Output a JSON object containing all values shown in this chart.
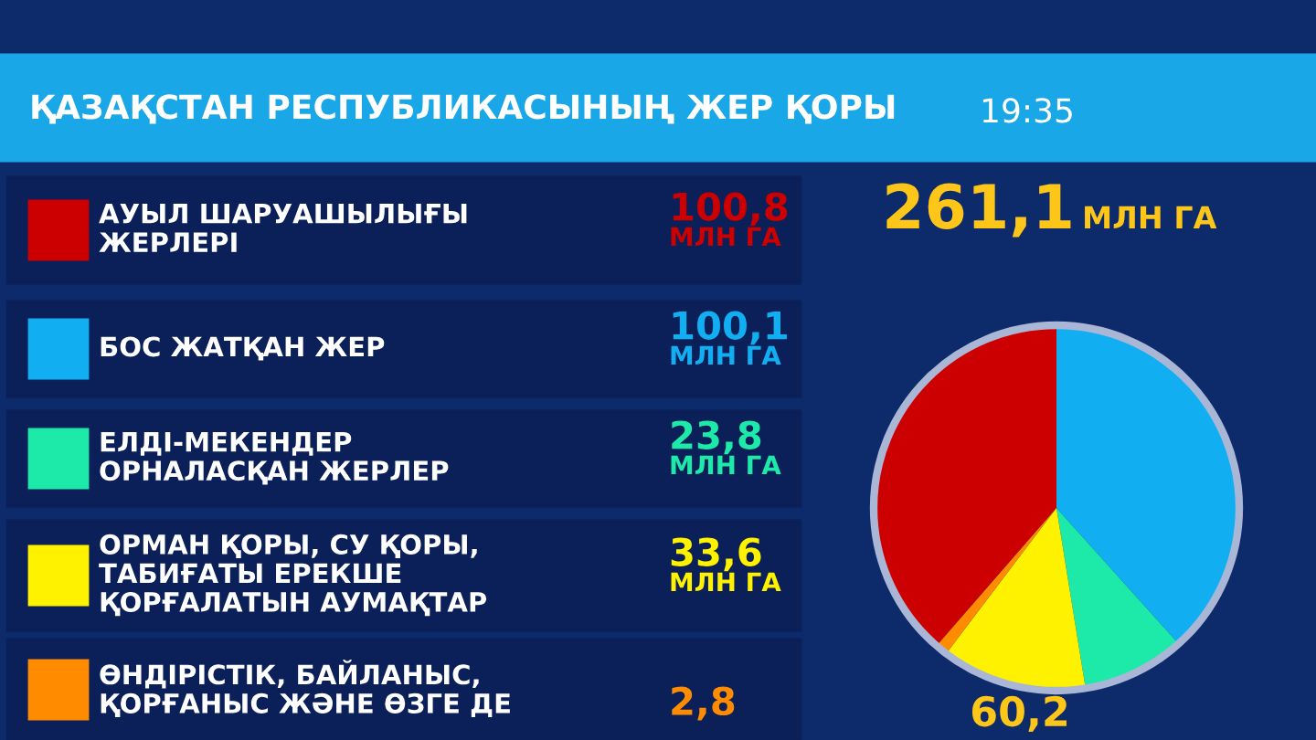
{
  "chart_data": {
    "type": "pie",
    "title": "ҚАЗАҚСТАН РЕСПУБЛИКАСЫНЫҢ ЖЕР ҚОРЫ",
    "subtitle": "261,1 МЛН ГА",
    "categories": [
      "АУЫЛ ШАРУАШЫЛЫҒЫ\nЖЕРЛЕРІ",
      "БОС ЖАТҚАН ЖЕР",
      "ЕЛДІ-МЕКЕНДЕР\nОРНАЛАСҚАН ЖЕРЛЕР",
      "ОРМАН ҚОРЫ, СУ ҚОРЫ,\nТАБИҒАТЫ ЕРЕКШЕ\nҚОРҒАЛАТЫН АУМАҚТАР",
      "ӨНДІРІСТІК, БАЙЛАНЫС,\nҚОРҒАНЫС ЖӘНЕ ӨЗГЕ ДЕ"
    ],
    "values": [
      100.8,
      100.1,
      23.8,
      33.6,
      2.8
    ],
    "colors": [
      "#cc0000",
      "#12aef2",
      "#1de9a8",
      "#fff200",
      "#ff8c00"
    ],
    "value_labels": [
      "100,8\nМЛН ГА",
      "100,1\nМЛН ГА",
      "23,8\nМЛН ГА",
      "33,6\nМЛН ГА",
      "2,8"
    ],
    "legend": "left",
    "annotations": [
      "19:35",
      "60,2"
    ]
  }
}
